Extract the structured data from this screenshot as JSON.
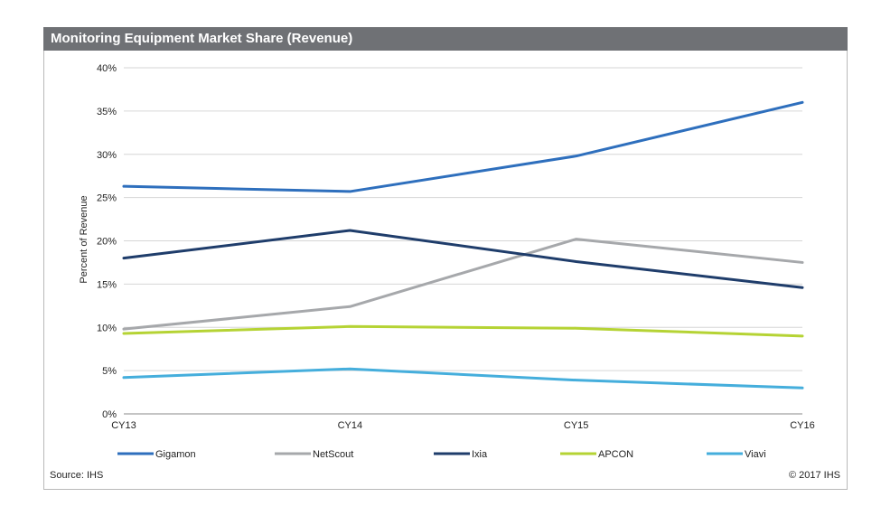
{
  "chart_data": {
    "type": "line",
    "title": "Monitoring Equipment Market Share (Revenue)",
    "ylabel": "Percent of Revenue",
    "xlabel": "",
    "categories": [
      "CY13",
      "CY14",
      "CY15",
      "CY16"
    ],
    "yticks": [
      "0%",
      "5%",
      "10%",
      "15%",
      "20%",
      "25%",
      "30%",
      "35%",
      "40%"
    ],
    "ylim": [
      0,
      40
    ],
    "grid": true,
    "legend_position": "bottom",
    "series": [
      {
        "name": "Gigamon",
        "color": "#2e6fbd",
        "values": [
          26.3,
          25.7,
          29.8,
          36.0
        ]
      },
      {
        "name": "NetScout",
        "color": "#a6a8ab",
        "values": [
          9.8,
          12.4,
          20.2,
          17.5
        ]
      },
      {
        "name": "Ixia",
        "color": "#1f3d6b",
        "values": [
          18.0,
          21.2,
          17.6,
          14.6
        ]
      },
      {
        "name": "APCON",
        "color": "#b5d334",
        "values": [
          9.3,
          10.1,
          9.9,
          9.0
        ]
      },
      {
        "name": "Viavi",
        "color": "#45aedc",
        "values": [
          4.2,
          5.2,
          3.9,
          3.0
        ]
      }
    ]
  },
  "footer": {
    "source": "Source: IHS",
    "copyright": "© 2017 IHS"
  }
}
